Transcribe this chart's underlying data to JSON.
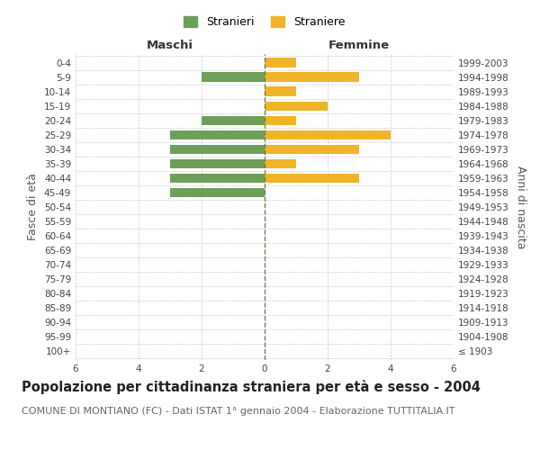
{
  "age_groups": [
    "100+",
    "95-99",
    "90-94",
    "85-89",
    "80-84",
    "75-79",
    "70-74",
    "65-69",
    "60-64",
    "55-59",
    "50-54",
    "45-49",
    "40-44",
    "35-39",
    "30-34",
    "25-29",
    "20-24",
    "15-19",
    "10-14",
    "5-9",
    "0-4"
  ],
  "birth_years": [
    "≤ 1903",
    "1904-1908",
    "1909-1913",
    "1914-1918",
    "1919-1923",
    "1924-1928",
    "1929-1933",
    "1934-1938",
    "1939-1943",
    "1944-1948",
    "1949-1953",
    "1954-1958",
    "1959-1963",
    "1964-1968",
    "1969-1973",
    "1974-1978",
    "1979-1983",
    "1984-1988",
    "1989-1993",
    "1994-1998",
    "1999-2003"
  ],
  "males": [
    0,
    0,
    0,
    0,
    0,
    0,
    0,
    0,
    0,
    0,
    0,
    3,
    3,
    3,
    3,
    3,
    2,
    0,
    0,
    2,
    0
  ],
  "females": [
    0,
    0,
    0,
    0,
    0,
    0,
    0,
    0,
    0,
    0,
    0,
    0,
    3,
    1,
    3,
    4,
    1,
    2,
    1,
    3,
    1
  ],
  "male_color": "#6d9f5a",
  "female_color": "#f0b429",
  "background_color": "#ffffff",
  "grid_color": "#cccccc",
  "center_line_color": "#7a7a50",
  "title": "Popolazione per cittadinanza straniera per età e sesso - 2004",
  "subtitle": "COMUNE DI MONTIANO (FC) - Dati ISTAT 1° gennaio 2004 - Elaborazione TUTTITALIA.IT",
  "xlabel_left": "Maschi",
  "xlabel_right": "Femmine",
  "ylabel_left": "Fasce di età",
  "ylabel_right": "Anni di nascita",
  "legend_male": "Stranieri",
  "legend_female": "Straniere",
  "xlim": 6,
  "title_fontsize": 10.5,
  "subtitle_fontsize": 8.0,
  "header_fontsize": 9.5,
  "tick_fontsize": 7.5,
  "ylabel_fontsize": 9,
  "legend_fontsize": 9
}
